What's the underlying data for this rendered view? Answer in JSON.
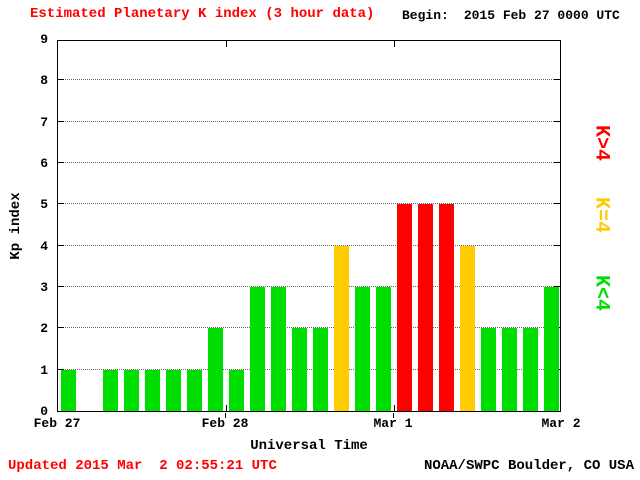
{
  "title": "Estimated Planetary K index (3 hour data)",
  "begin": {
    "label": "Begin:",
    "value": "2015 Feb 27 0000 UTC"
  },
  "footer": {
    "updated": "Updated 2015 Mar  2 02:55:21 UTC",
    "credit": "NOAA/SWPC Boulder, CO USA"
  },
  "colors": {
    "title_text": "#ff0000",
    "updated_text": "#ff0000",
    "axis_text": "#000000",
    "kp_low": "#00dd00",
    "kp_mid": "#ffcc00",
    "kp_high": "#ff0000"
  },
  "legend": [
    {
      "label": "K>4",
      "color": "#ff0000"
    },
    {
      "label": "K=4",
      "color": "#ffcc00"
    },
    {
      "label": "K<4",
      "color": "#00dd00"
    }
  ],
  "chart_data": {
    "type": "bar",
    "title": "Estimated Planetary K index (3 hour data)",
    "xlabel": "Universal Time",
    "ylabel": "Kp index",
    "ylim": [
      0,
      9
    ],
    "yticks": [
      0,
      1,
      2,
      3,
      4,
      5,
      6,
      7,
      8,
      9
    ],
    "begin": "2015 Feb 27 0000 UTC",
    "interval_hours": 3,
    "slots": 24,
    "xtick_labels": [
      "Feb 27",
      "Feb 28",
      "Mar 1",
      "Mar 2"
    ],
    "xtick_positions": [
      0,
      8,
      16,
      24
    ],
    "values": [
      1,
      null,
      1,
      1,
      1,
      1,
      1,
      2,
      1,
      3,
      3,
      2,
      2,
      4,
      3,
      3,
      5,
      5,
      5,
      4,
      2,
      2,
      2,
      3
    ],
    "color_rule": {
      "lt4": "#00dd00",
      "eq4": "#ffcc00",
      "gt4": "#ff0000"
    },
    "grid": "horizontal dotted lines at each integer Kp value",
    "legend_position": "right, rotated labels"
  }
}
